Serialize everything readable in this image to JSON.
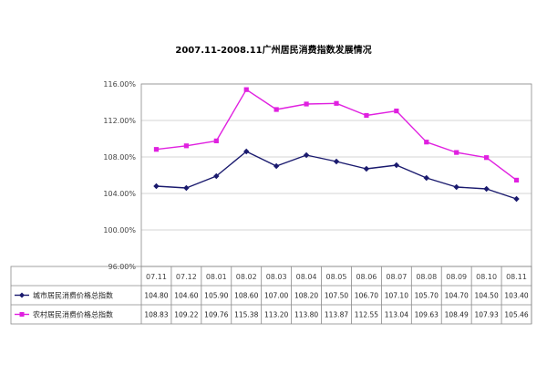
{
  "chart_data": {
    "type": "line",
    "title": "2007.11-2008.11广州居民消费指数发展情况",
    "categories": [
      "07.11",
      "07.12",
      "08.01",
      "08.02",
      "08.03",
      "08.04",
      "08.05",
      "08.06",
      "08.07",
      "08.08",
      "08.09",
      "08.10",
      "08.11"
    ],
    "y_ticks": [
      "96.00%",
      "100.00%",
      "104.00%",
      "108.00%",
      "112.00%",
      "116.00%"
    ],
    "ylim": [
      96,
      116
    ],
    "grid": true,
    "legend_placement": "table-left",
    "series": [
      {
        "name": "城市居民消费价格总指数",
        "values": [
          104.8,
          104.6,
          105.9,
          108.6,
          107.0,
          108.2,
          107.5,
          106.7,
          107.1,
          105.7,
          104.7,
          104.5,
          103.4
        ],
        "labels": [
          "104.80",
          "104.60",
          "105.90",
          "108.60",
          "107.00",
          "108.20",
          "107.50",
          "106.70",
          "107.10",
          "105.70",
          "104.70",
          "104.50",
          "103.40"
        ],
        "color": "#1a1a6e",
        "marker": "diamond"
      },
      {
        "name": "农村居民消费价格总指数",
        "values": [
          108.83,
          109.22,
          109.76,
          115.38,
          113.2,
          113.8,
          113.87,
          112.55,
          113.04,
          109.63,
          108.49,
          107.93,
          105.46
        ],
        "labels": [
          "108.83",
          "109.22",
          "109.76",
          "115.38",
          "113.20",
          "113.80",
          "113.87",
          "112.55",
          "113.04",
          "109.63",
          "108.49",
          "107.93",
          "105.46"
        ],
        "color": "#e020e0",
        "marker": "square"
      }
    ]
  }
}
